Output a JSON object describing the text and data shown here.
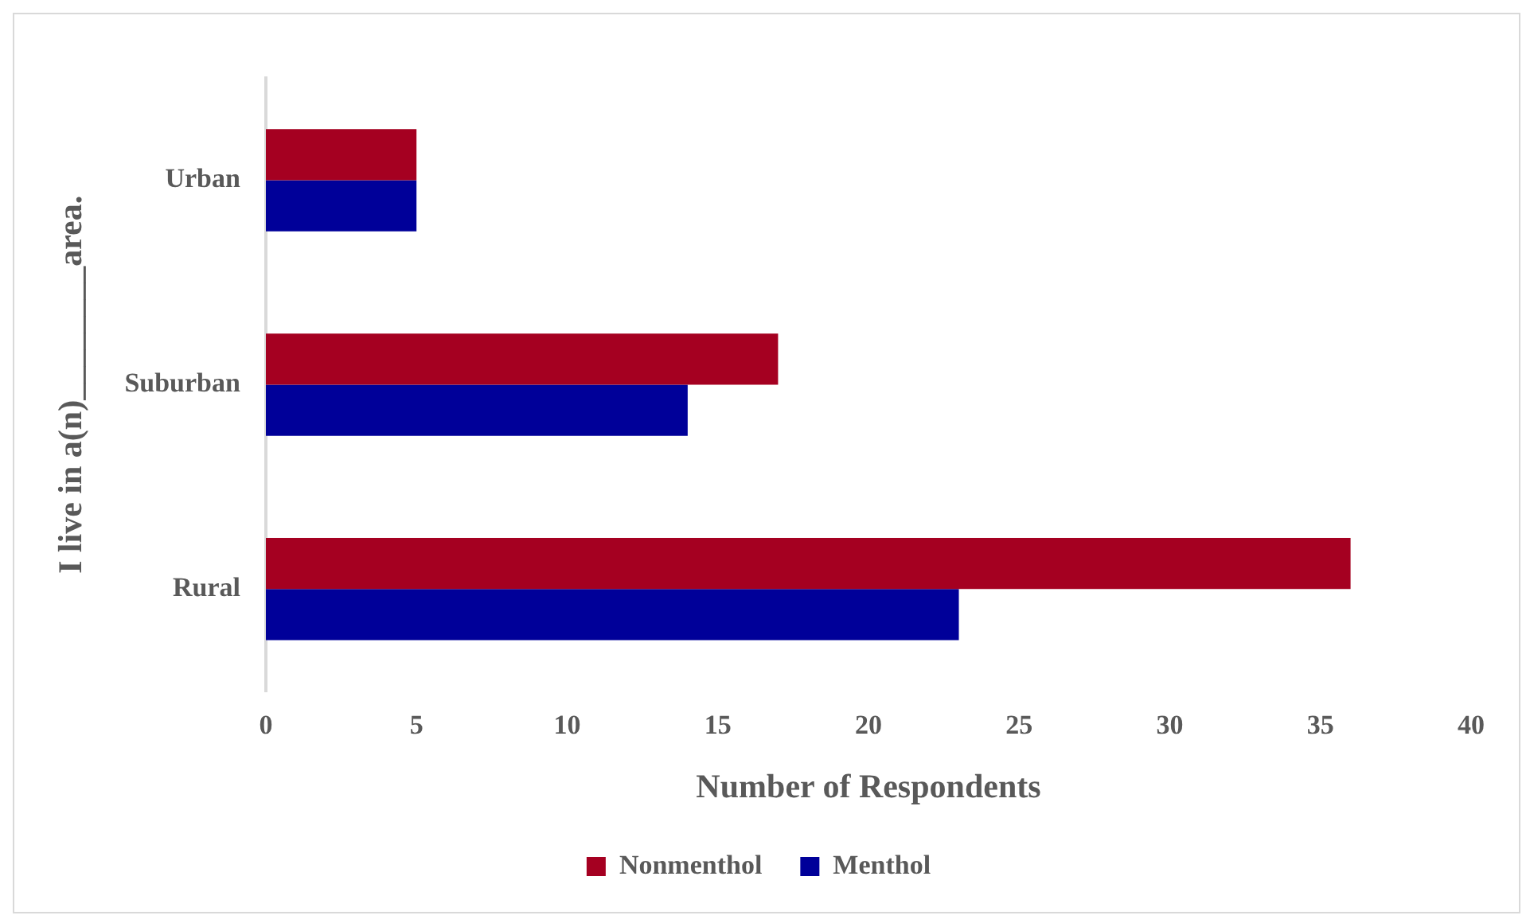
{
  "chart_data": {
    "type": "bar",
    "orientation": "horizontal",
    "categories": [
      "Urban",
      "Suburban",
      "Rural"
    ],
    "series": [
      {
        "name": "Nonmenthol",
        "color": "#a50021",
        "values": [
          5,
          17,
          36
        ]
      },
      {
        "name": "Menthol",
        "color": "#000099",
        "values": [
          5,
          14,
          23
        ]
      }
    ],
    "xlabel": "Number of Respondents",
    "ylabel": "I live in a(n)________area.",
    "xlim": [
      0,
      40
    ],
    "xticks": [
      0,
      5,
      10,
      15,
      20,
      25,
      30,
      35,
      40
    ],
    "grid": false,
    "legend": "bottom"
  }
}
